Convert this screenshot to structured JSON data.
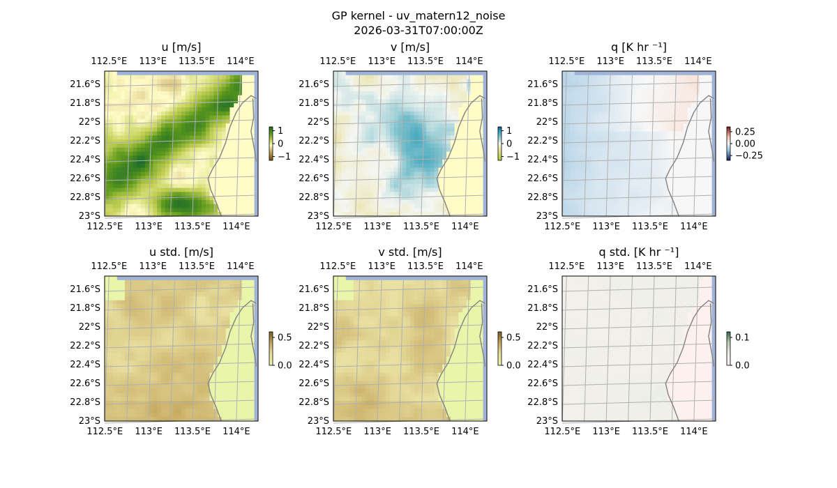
{
  "figure": {
    "title_line1": "GP kernel - uv_matern12_noise",
    "title_line2": "2026-03-31T07:00:00Z"
  },
  "chart_data": [
    {
      "type": "heatmap",
      "title": "u [m/s]",
      "lon_ticks": [
        "112.5°E",
        "113°E",
        "113.5°E",
        "114°E"
      ],
      "lat_ticks": [
        "21.6°S",
        "21.8°S",
        "22°S",
        "22.2°S",
        "22.4°S",
        "22.6°S",
        "22.8°S",
        "23°S"
      ],
      "colorbar": {
        "ticks": [
          "1",
          "0",
          "−1"
        ],
        "values": [
          1,
          0,
          -1
        ],
        "range": [
          -1.3,
          1.3
        ],
        "colormap": "brown-yellow-green-teal"
      },
      "land_color": "#fffcc8"
    },
    {
      "type": "heatmap",
      "title": "v [m/s]",
      "lon_ticks": [
        "112.5°E",
        "113°E",
        "113.5°E",
        "114°E"
      ],
      "lat_ticks": [
        "21.6°S",
        "21.8°S",
        "22°S",
        "22.2°S",
        "22.4°S",
        "22.6°S",
        "22.8°S",
        "23°S"
      ],
      "colorbar": {
        "ticks": [
          "1",
          "0",
          "−1"
        ],
        "values": [
          1,
          0,
          -1
        ],
        "range": [
          -1.3,
          1.3
        ],
        "colormap": "yellow-teal-blue"
      },
      "land_color": "#fffcc8"
    },
    {
      "type": "heatmap",
      "title": "q [K hr ⁻¹]",
      "lon_ticks": [
        "112.5°E",
        "113°E",
        "113.5°E",
        "114°E"
      ],
      "lat_ticks": [
        "21.6°S",
        "21.8°S",
        "22°S",
        "22.2°S",
        "22.4°S",
        "22.6°S",
        "22.8°S",
        "23°S"
      ],
      "colorbar": {
        "ticks": [
          "0.25",
          "0.00",
          "−0.25"
        ],
        "values": [
          0.25,
          0.0,
          -0.25
        ],
        "range": [
          -0.35,
          0.35
        ],
        "colormap": "red-white-blue"
      },
      "land_color": "#f7f7f7"
    },
    {
      "type": "heatmap",
      "title": "u std. [m/s]",
      "lon_ticks": [
        "112.5°E",
        "113°E",
        "113.5°E",
        "114°E"
      ],
      "lat_ticks": [
        "21.6°S",
        "21.8°S",
        "22°S",
        "22.2°S",
        "22.4°S",
        "22.6°S",
        "22.8°S",
        "23°S"
      ],
      "colorbar": {
        "ticks": [
          "0.5",
          "0.0"
        ],
        "values": [
          0.5,
          0.0
        ],
        "range": [
          0,
          0.6
        ],
        "colormap": "yellow-tan-brown"
      },
      "land_color": "#e9f5a8"
    },
    {
      "type": "heatmap",
      "title": "v std. [m/s]",
      "lon_ticks": [
        "112.5°E",
        "113°E",
        "113.5°E",
        "114°E"
      ],
      "lat_ticks": [
        "21.6°S",
        "21.8°S",
        "22°S",
        "22.2°S",
        "22.4°S",
        "22.6°S",
        "22.8°S",
        "23°S"
      ],
      "colorbar": {
        "ticks": [
          "0.5",
          "0.0"
        ],
        "values": [
          0.5,
          0.0
        ],
        "range": [
          0,
          0.6
        ],
        "colormap": "yellow-tan-brown"
      },
      "land_color": "#e9f5a8"
    },
    {
      "type": "heatmap",
      "title": "q std. [K hr ⁻¹]",
      "lon_ticks": [
        "112.5°E",
        "113°E",
        "113.5°E",
        "114°E"
      ],
      "lat_ticks": [
        "21.6°S",
        "21.8°S",
        "22°S",
        "22.2°S",
        "22.4°S",
        "22.6°S",
        "22.8°S",
        "23°S"
      ],
      "colorbar": {
        "ticks": [
          "0.1",
          "0.0"
        ],
        "values": [
          0.1,
          0.0
        ],
        "range": [
          0,
          0.12
        ],
        "colormap": "pink-white-green"
      },
      "land_color": "#fdf1ef"
    }
  ],
  "colors": {
    "ocean_edge": "#9fb4d8",
    "grid": "#b0b0b0",
    "coastline": "#888888"
  }
}
